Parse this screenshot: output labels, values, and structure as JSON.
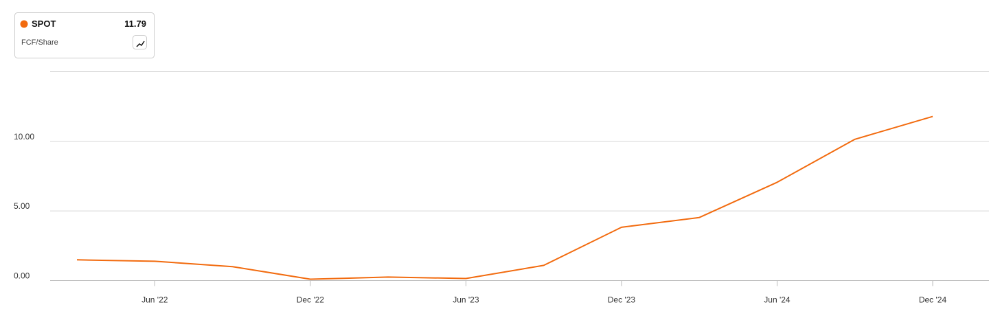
{
  "chart_data": {
    "type": "line",
    "metric": "FCF/Share",
    "categories": [
      null,
      "Jun '22",
      null,
      "Dec '22",
      null,
      "Jun '23",
      null,
      "Dec '23",
      null,
      "Jun '24",
      null,
      "Dec '24"
    ],
    "series": [
      {
        "name": "SPOT",
        "color": "#f26b0f",
        "values": [
          1.49,
          1.39,
          1.0,
          0.1,
          0.25,
          0.15,
          1.09,
          3.83,
          4.53,
          7.06,
          10.15,
          11.79
        ]
      }
    ],
    "ylim": [
      0,
      15
    ],
    "yticks": [
      {
        "value": 0,
        "label": "0.00"
      },
      {
        "value": 5,
        "label": "5.00"
      },
      {
        "value": 10,
        "label": "10.00"
      }
    ],
    "grid": true
  }
}
